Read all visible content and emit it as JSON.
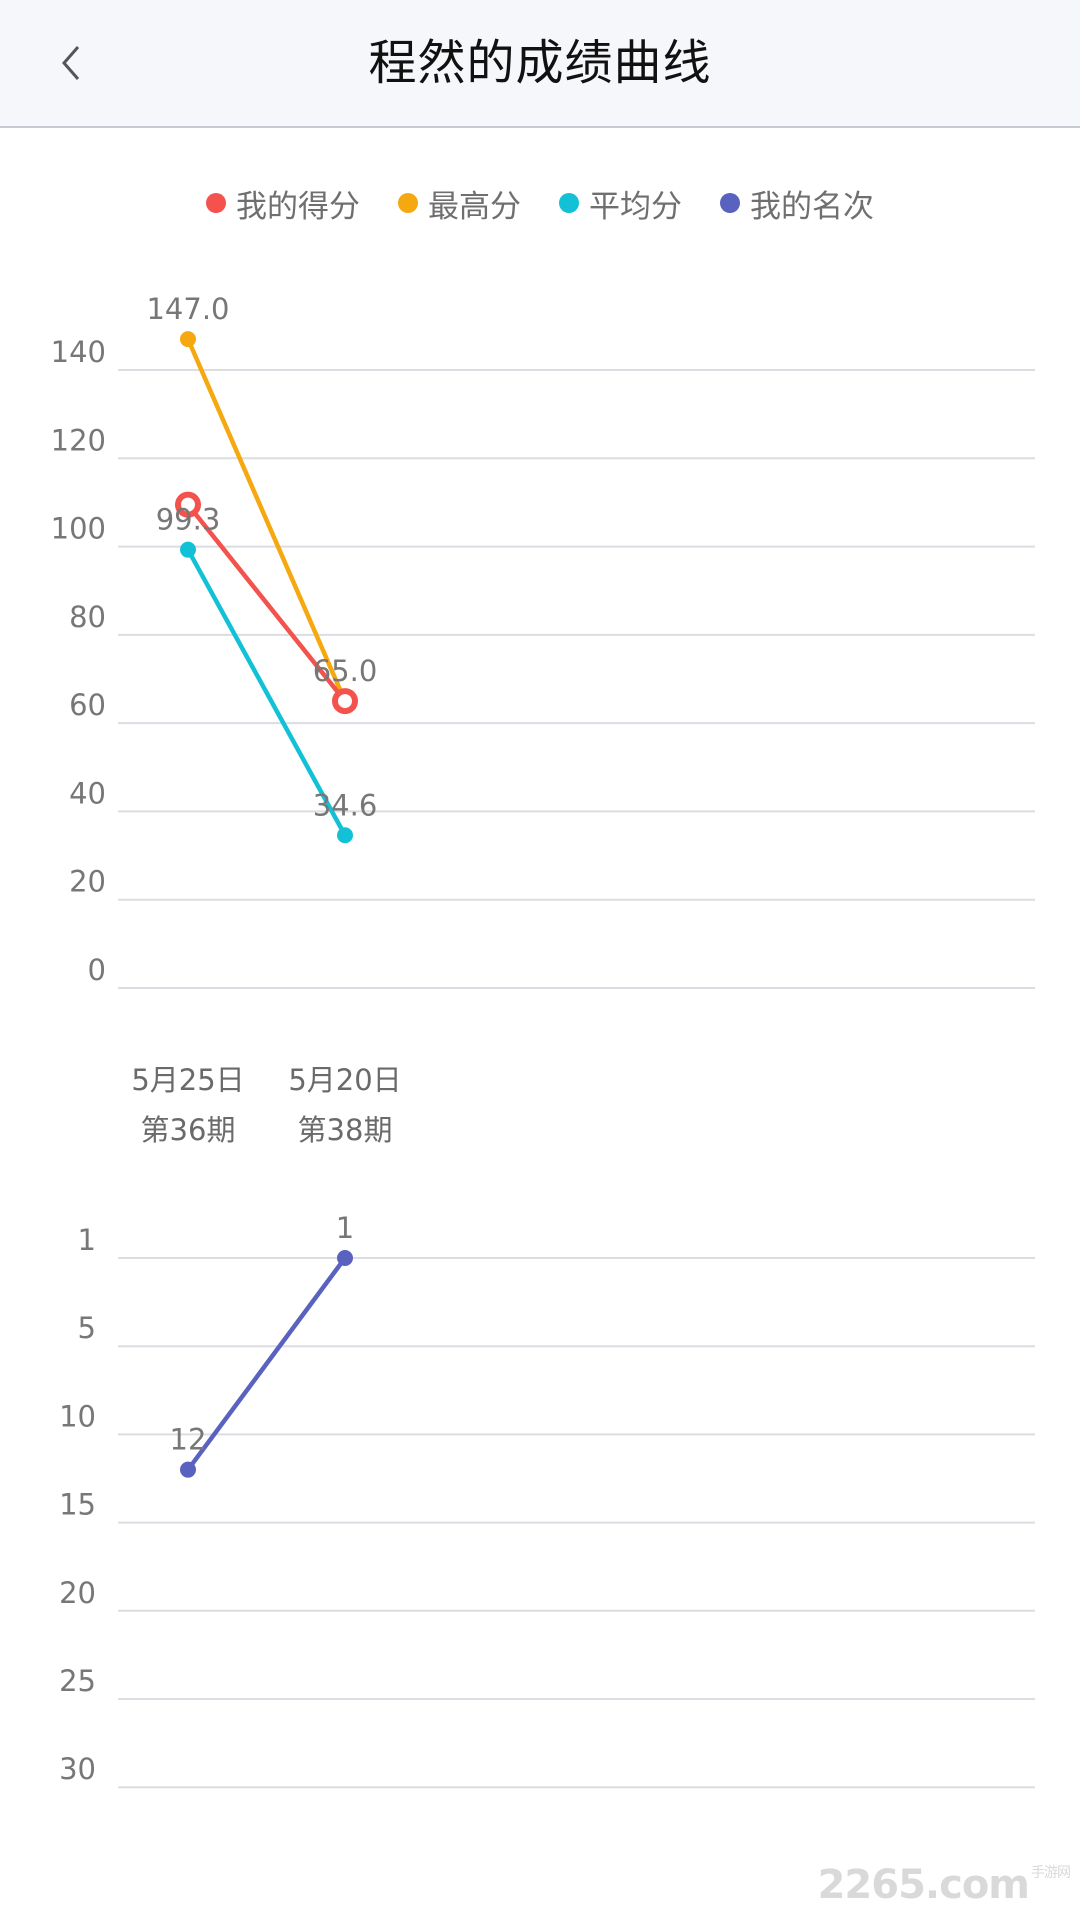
{
  "header": {
    "title": "程然的成绩曲线"
  },
  "watermark": {
    "brand": "2265",
    "suffix": ".com",
    "cn": "手游网"
  },
  "colors": {
    "my_score": "#f4524d",
    "max": "#f6a810",
    "avg": "#12c1d6",
    "rank": "#5a62c0",
    "grid": "#dcdde2"
  },
  "legend": [
    {
      "label": "我的得分",
      "color": "#f4524d"
    },
    {
      "label": "最高分",
      "color": "#f6a810"
    },
    {
      "label": "平均分",
      "color": "#12c1d6"
    },
    {
      "label": "我的名次",
      "color": "#5a62c0"
    }
  ],
  "chart_data": [
    {
      "type": "line",
      "categories": [
        {
          "date": "5月25日",
          "period": "第36期"
        },
        {
          "date": "5月20日",
          "period": "第38期"
        }
      ],
      "ylim": [
        0,
        140
      ],
      "yticks": [
        0,
        20,
        40,
        60,
        80,
        100,
        120,
        140
      ],
      "series": [
        {
          "name": "最高分",
          "color": "#f6a810",
          "values": [
            147.0,
            65.0
          ],
          "labels": [
            "147.0",
            ""
          ]
        },
        {
          "name": "我的得分",
          "color": "#f4524d",
          "values": [
            109.5,
            65.0
          ],
          "labels": [
            "",
            "65.0"
          ],
          "hollow": true
        },
        {
          "name": "平均分",
          "color": "#12c1d6",
          "values": [
            99.3,
            34.6
          ],
          "labels": [
            "99.3",
            "34.6"
          ]
        }
      ]
    },
    {
      "type": "line",
      "inverted": true,
      "categories": [
        "5月25日",
        "5月20日"
      ],
      "yticks": [
        1,
        5,
        10,
        15,
        20,
        25,
        30
      ],
      "series": [
        {
          "name": "我的名次",
          "color": "#5a62c0",
          "values": [
            12,
            1
          ],
          "labels": [
            "12",
            "1"
          ]
        }
      ]
    }
  ]
}
